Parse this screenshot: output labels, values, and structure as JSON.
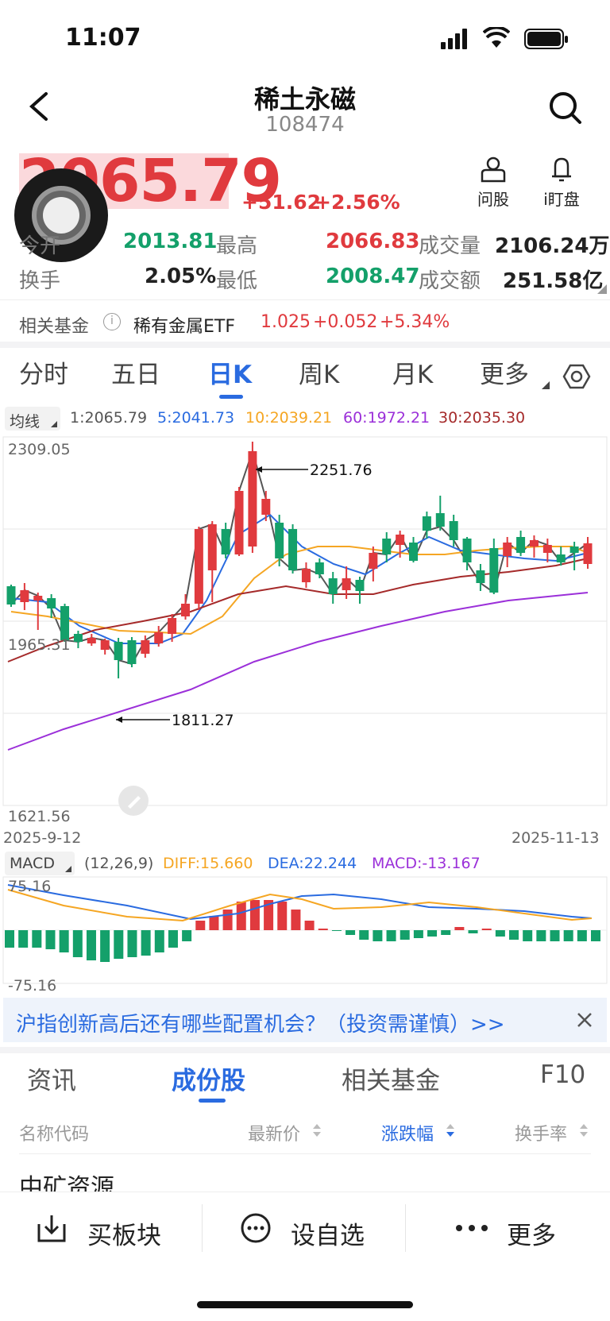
{
  "status": {
    "time": "11:07"
  },
  "header": {
    "title": "稀土永磁",
    "code": "108474"
  },
  "quote": {
    "price": "2065.79",
    "change": "+51.62",
    "change_pct": "+2.56%",
    "open_label": "今开",
    "open_value": "2013.81",
    "high_label": "最高",
    "high_value": "2066.83",
    "volume_label": "成交量",
    "volume_value": "2106.24万",
    "turnover_label": "换手",
    "turnover_value": "2.05%",
    "low_label": "最低",
    "low_value": "2008.47",
    "amount_label": "成交额",
    "amount_value": "251.58亿"
  },
  "actions": {
    "ask_label": "问股",
    "watch_label": "i盯盘"
  },
  "fund": {
    "label": "相关基金",
    "name": "稀有金属ETF",
    "price": "1.025",
    "change": "+0.052",
    "change_pct": "+5.34%"
  },
  "chart_tabs": [
    "分时",
    "五日",
    "日K",
    "周K",
    "月K",
    "更多"
  ],
  "active_chart_tab": 2,
  "ma": {
    "selector": "均线",
    "ma1": "1:2065.79",
    "ma5": "5:2041.73",
    "ma10": "10:2039.21",
    "ma60": "60:1972.21",
    "ma30": "30:2035.30"
  },
  "kline": {
    "y_max_label": "2309.05",
    "y_mid_label": "1965.31",
    "y_min_label": "1621.56",
    "high_annot": "2251.76",
    "low_annot": "1811.27",
    "date_start": "2025-9-12",
    "date_end": "2025-11-13"
  },
  "macd": {
    "selector": "MACD",
    "params": "(12,26,9)",
    "diff": "DIFF:15.660",
    "dea": "DEA:22.244",
    "macd": "MACD:-13.167",
    "y_max_label": "75.16",
    "y_min_label": "-75.16"
  },
  "banner": {
    "text": "沪指创新高后还有哪些配置机会？（投资需谨慎）>>"
  },
  "lower_tabs": [
    "资讯",
    "成份股",
    "相关基金",
    "F10"
  ],
  "active_lower_tab": 1,
  "table": {
    "col_name": "名称代码",
    "col_price": "最新价",
    "col_change": "涨跌幅",
    "col_turnover": "换手率",
    "first_row_name": "中矿资源"
  },
  "bottom_bar": {
    "buy_label": "买板块",
    "watchlist_label": "设自选",
    "more_label": "更多"
  },
  "colors": {
    "red": "#e03a3e",
    "green": "#14a06a",
    "blue": "#2a6be0",
    "orange": "#f5a623",
    "purple": "#9b30d9",
    "brown": "#a52a2a"
  }
}
